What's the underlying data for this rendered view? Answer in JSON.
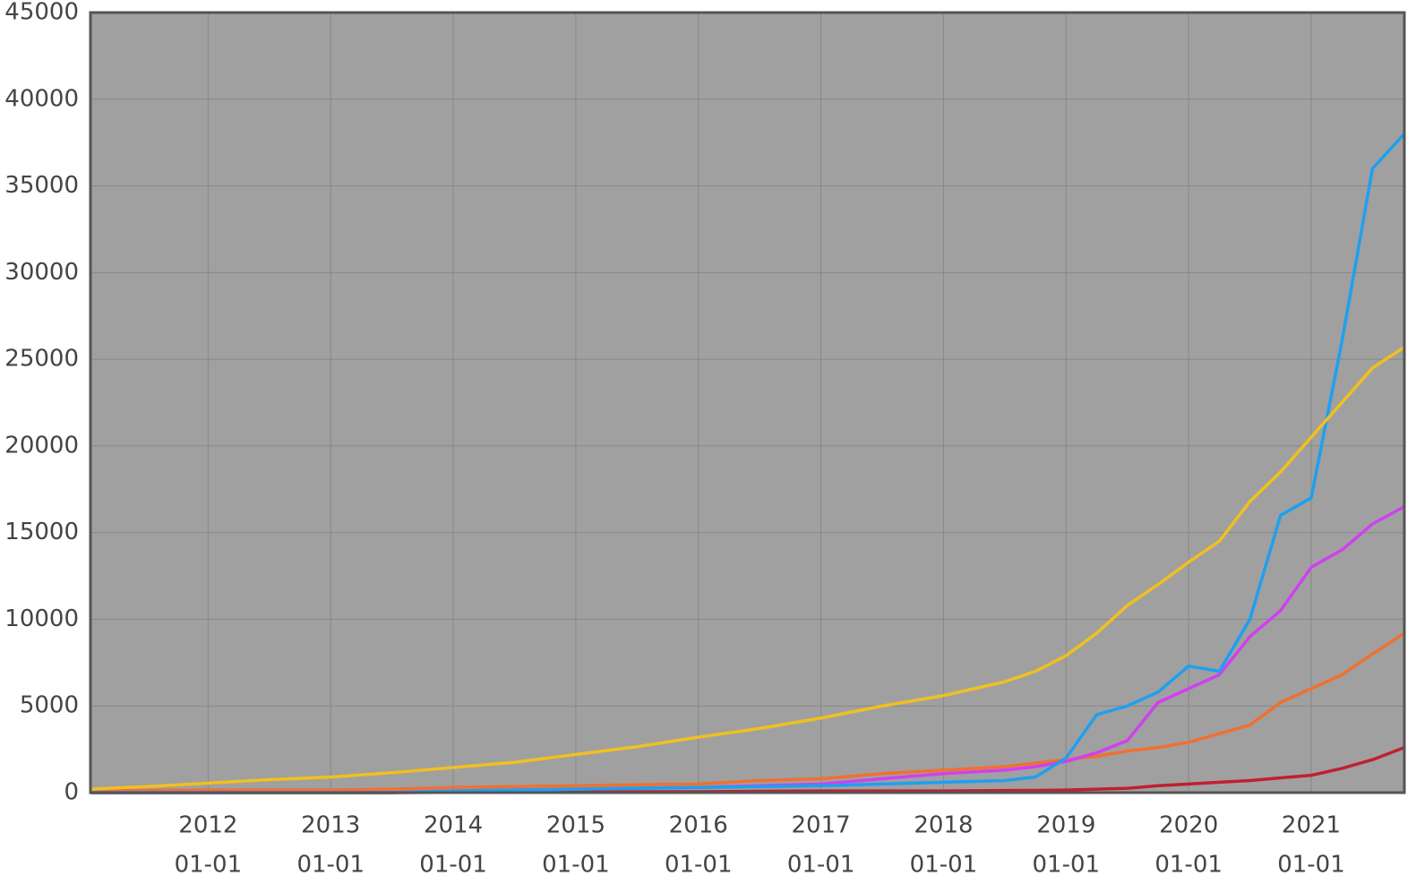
{
  "chart_data": {
    "type": "line",
    "x": [
      2011.04,
      2011.5,
      2012,
      2012.5,
      2013,
      2013.5,
      2014,
      2014.5,
      2015,
      2015.5,
      2016,
      2016.5,
      2017,
      2017.5,
      2018,
      2018.5,
      2018.75,
      2019,
      2019.25,
      2019.5,
      2019.75,
      2020,
      2020.25,
      2020.5,
      2020.75,
      2021,
      2021.25,
      2021.5,
      2021.76
    ],
    "series": [
      {
        "color": "#f0c020",
        "values": [
          200,
          350,
          550,
          750,
          900,
          1150,
          1450,
          1750,
          2200,
          2650,
          3200,
          3700,
          4300,
          5000,
          5600,
          6400,
          7000,
          7900,
          9200,
          10800,
          12000,
          13300,
          14500,
          16800,
          18500,
          20500,
          22500,
          24500,
          25700
        ]
      },
      {
        "color": "#1ea0f0",
        "values": [
          0,
          0,
          0,
          0,
          0,
          0,
          100,
          150,
          200,
          250,
          300,
          350,
          400,
          500,
          600,
          700,
          900,
          2000,
          4500,
          5000,
          5800,
          7300,
          7000,
          10000,
          16000,
          17000,
          26000,
          36000,
          38000
        ]
      },
      {
        "color": "#d040f0",
        "values": [
          0,
          0,
          0,
          0,
          0,
          0,
          100,
          150,
          200,
          250,
          300,
          400,
          500,
          800,
          1100,
          1300,
          1500,
          1800,
          2300,
          3000,
          5200,
          6000,
          6800,
          9000,
          10500,
          13000,
          14000,
          15500,
          16500
        ]
      },
      {
        "color": "#f07030",
        "values": [
          100,
          120,
          150,
          150,
          150,
          200,
          300,
          350,
          400,
          450,
          500,
          700,
          800,
          1100,
          1300,
          1500,
          1700,
          1900,
          2100,
          2400,
          2600,
          2900,
          3400,
          3900,
          5200,
          6000,
          6800,
          8000,
          9200
        ]
      },
      {
        "color": "#c02030",
        "values": [
          0,
          0,
          0,
          0,
          0,
          0,
          20,
          30,
          40,
          50,
          50,
          80,
          100,
          100,
          100,
          120,
          130,
          150,
          200,
          250,
          400,
          500,
          600,
          700,
          850,
          1000,
          1400,
          1900,
          2600
        ]
      }
    ],
    "xlim": [
      2011.04,
      2021.76
    ],
    "xticks": [
      {
        "value": 2012,
        "label": [
          "2012",
          "01-01"
        ]
      },
      {
        "value": 2013,
        "label": [
          "2013",
          "01-01"
        ]
      },
      {
        "value": 2014,
        "label": [
          "2014",
          "01-01"
        ]
      },
      {
        "value": 2015,
        "label": [
          "2015",
          "01-01"
        ]
      },
      {
        "value": 2016,
        "label": [
          "2016",
          "01-01"
        ]
      },
      {
        "value": 2017,
        "label": [
          "2017",
          "01-01"
        ]
      },
      {
        "value": 2018,
        "label": [
          "2018",
          "01-01"
        ]
      },
      {
        "value": 2019,
        "label": [
          "2019",
          "01-01"
        ]
      },
      {
        "value": 2020,
        "label": [
          "2020",
          "01-01"
        ]
      },
      {
        "value": 2021,
        "label": [
          "2021",
          "01-01"
        ]
      }
    ],
    "ylim": [
      0,
      45000
    ],
    "yticks": [
      0,
      5000,
      10000,
      15000,
      20000,
      25000,
      30000,
      35000,
      40000,
      45000
    ],
    "grid": true
  }
}
